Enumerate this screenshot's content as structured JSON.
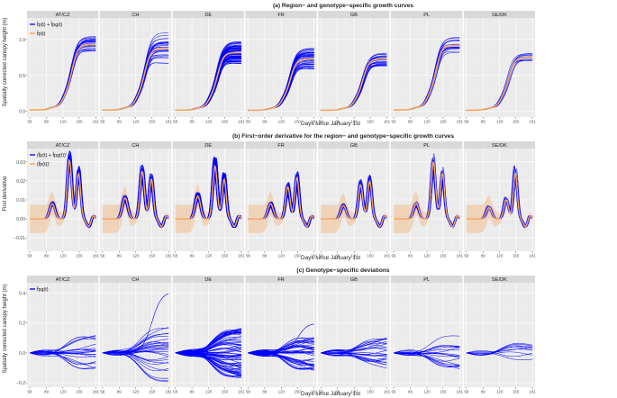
{
  "colors": {
    "panel_bg": "#ebebeb",
    "strip_bg": "#d9d9d9",
    "grid_major": "#ffffff",
    "grid_minor": "#f4f4f4",
    "blue": "#0000ff",
    "orange": "#f5a65b",
    "text": "#222222",
    "tick_text": "#4d4d4d"
  },
  "regions": [
    "AT/CZ",
    "CH",
    "DE",
    "FR",
    "GB",
    "PL",
    "SE/DK"
  ],
  "x_axis": {
    "label": "Days since January 1st",
    "ticks": [
      58,
      89,
      120,
      150,
      181
    ],
    "range": [
      58,
      181
    ]
  },
  "chart_data": [
    {
      "type": "line",
      "title": "(a) Region− and genotype−specific growth curves",
      "ylabel": "Spatially corrected canopy height (m)",
      "ylim": [
        -0.08,
        1.3
      ],
      "yticks": [
        0.0,
        0.5,
        1.0
      ],
      "ytick_labels": [
        "0.0",
        "0.5",
        "1.0"
      ],
      "legend": [
        {
          "label": "f̂p(t) + f̂pg(t)",
          "color": "#0000ff"
        },
        {
          "label": "f̂p(t)",
          "color": "#f5a65b"
        }
      ],
      "region_means": [
        {
          "region": "AT/CZ",
          "final": 0.93,
          "lines": 22,
          "spread": 0.12
        },
        {
          "region": "CH",
          "final": 0.88,
          "lines": 28,
          "spread": 0.22
        },
        {
          "region": "DE",
          "final": 0.82,
          "lines": 80,
          "spread": 0.16
        },
        {
          "region": "FR",
          "final": 0.73,
          "lines": 45,
          "spread": 0.15
        },
        {
          "region": "GB",
          "final": 0.73,
          "lines": 25,
          "spread": 0.1
        },
        {
          "region": "PL",
          "final": 0.92,
          "lines": 18,
          "spread": 0.12
        },
        {
          "region": "SE/DK",
          "final": 0.75,
          "lines": 10,
          "spread": 0.06
        }
      ]
    },
    {
      "type": "line",
      "title": "(b) First−order derivative for the region− and genotype−specific growth curves",
      "ylabel": "First derivative",
      "ylim": [
        -0.017,
        0.037
      ],
      "yticks": [
        -0.01,
        0.0,
        0.01,
        0.02,
        0.03
      ],
      "ytick_labels": [
        "−0.01",
        "0.00",
        "0.01",
        "0.02",
        "0.03"
      ],
      "legend": [
        {
          "label": "(f̂p(t) + f̂pg(t))'",
          "color": "#0000ff"
        },
        {
          "label": "(f̂p(t))'",
          "color": "#f5a65b"
        }
      ],
      "peaks": [
        {
          "region": "AT/CZ",
          "p1": 0.008,
          "p2": 0.031,
          "p3": 0.024
        },
        {
          "region": "CH",
          "p1": 0.011,
          "p2": 0.025,
          "p3": 0.021
        },
        {
          "region": "DE",
          "p1": 0.012,
          "p2": 0.028,
          "p3": 0.021
        },
        {
          "region": "FR",
          "p1": 0.008,
          "p2": 0.017,
          "p3": 0.022
        },
        {
          "region": "GB",
          "p1": 0.007,
          "p2": 0.018,
          "p3": 0.02
        },
        {
          "region": "PL",
          "p1": 0.008,
          "p2": 0.03,
          "p3": 0.024
        },
        {
          "region": "SE/DK",
          "p1": 0.006,
          "p2": 0.01,
          "p3": 0.024
        }
      ]
    },
    {
      "type": "line",
      "title": "(c) Genotype−specific deviations",
      "ylabel": "Spatially corrected canopy height (m)",
      "ylim": [
        -0.23,
        0.47
      ],
      "yticks": [
        -0.2,
        0.0,
        0.2,
        0.4
      ],
      "ytick_labels": [
        "−0.2",
        "0.0",
        "0.2",
        "0.4"
      ],
      "legend": [
        {
          "label": "f̂pg(t)",
          "color": "#0000ff"
        }
      ],
      "deviations": [
        {
          "region": "AT/CZ",
          "lines": 22,
          "spread": 0.12
        },
        {
          "region": "CH",
          "lines": 28,
          "spread": 0.2,
          "outlier": 0.41
        },
        {
          "region": "DE",
          "lines": 80,
          "spread": 0.17
        },
        {
          "region": "FR",
          "lines": 45,
          "spread": 0.12,
          "outlier": 0.2
        },
        {
          "region": "GB",
          "lines": 25,
          "spread": 0.1
        },
        {
          "region": "PL",
          "lines": 18,
          "spread": 0.12
        },
        {
          "region": "SE/DK",
          "lines": 10,
          "spread": 0.06
        }
      ]
    }
  ]
}
